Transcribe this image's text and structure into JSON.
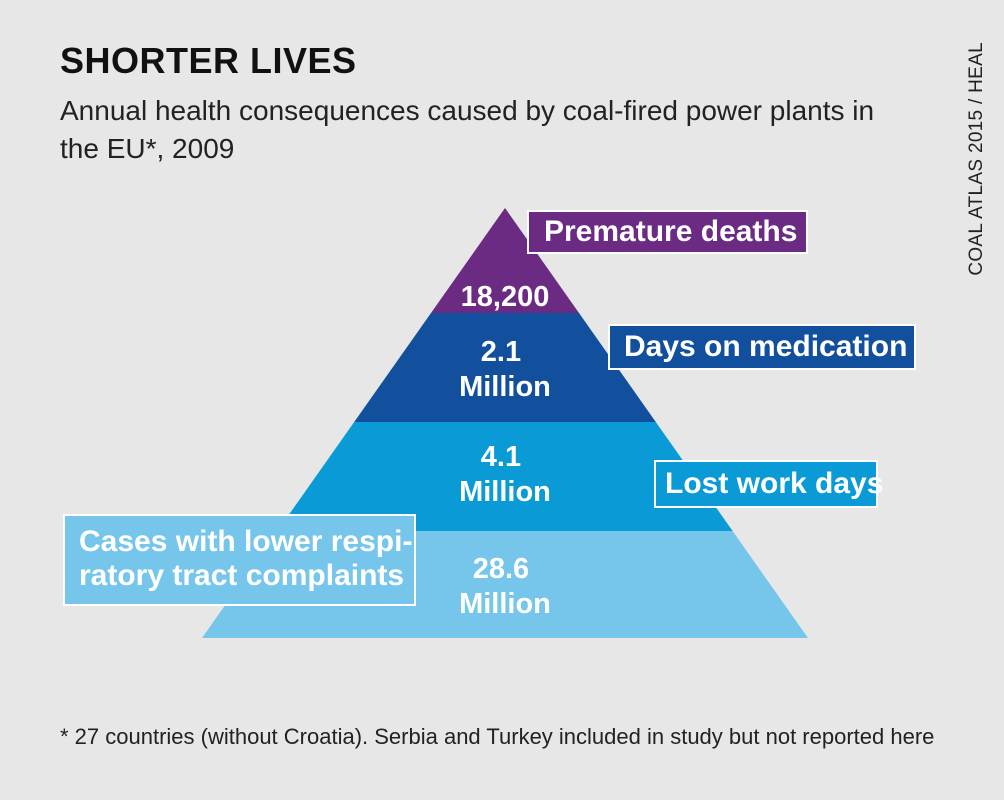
{
  "title": "SHORTER LIVES",
  "subtitle": "Annual health consequences caused by coal-fired power plants in the EU*, 2009",
  "source": "COAL ATLAS 2015 / HEAL",
  "footnote": "* 27 countries (without Croatia). Serbia and Turkey included in study but not reported here",
  "chart_data": {
    "type": "pyramid",
    "title": "SHORTER LIVES",
    "subtitle": "Annual health consequences caused by coal-fired power plants in the EU*, 2009",
    "levels": [
      {
        "category": "Premature deaths",
        "value": 18200,
        "value_lines": [
          "18,200"
        ],
        "color": "#6b2b83"
      },
      {
        "category": "Days on medication",
        "value": 2100000,
        "value_lines": [
          "2.1",
          "Million"
        ],
        "color": "#124f9c"
      },
      {
        "category": "Lost work days",
        "value": 4100000,
        "value_lines": [
          "4.1",
          "Million"
        ],
        "color": "#0a9bd6"
      },
      {
        "category": "Cases with lower respiratory tract complaints",
        "category_lines": [
          "Cases with lower respi-",
          "ratory tract complaints"
        ],
        "value": 28600000,
        "value_lines": [
          "28.6",
          "Million"
        ],
        "color": "#76c6eb"
      }
    ]
  }
}
